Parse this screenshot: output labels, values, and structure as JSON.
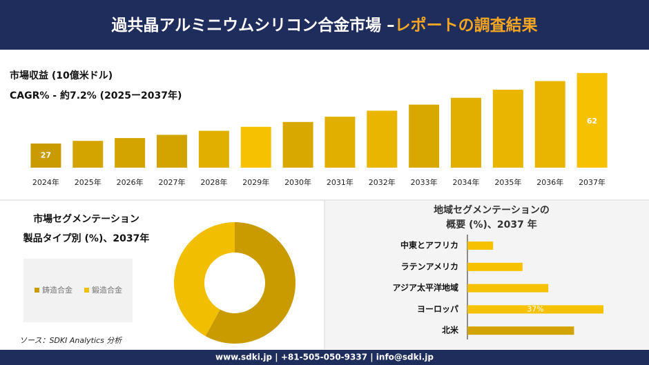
{
  "header": {
    "title": "過共晶アルミニウムシリコン合金市場 –",
    "title_highlight": "レポートの調査結果"
  },
  "chart_data": [
    {
      "type": "bar",
      "title": "市場収益 (10億米ドル)",
      "subtitle": "CAGR% - 約7.2% (2025ー2037年)",
      "categories": [
        "2024年",
        "2025年",
        "2026年",
        "2027年",
        "2028年",
        "2029年",
        "2030年",
        "2031年",
        "2032年",
        "2033年",
        "2034年",
        "2035年",
        "2036年",
        "2037年"
      ],
      "values": [
        27,
        28.3,
        29.7,
        31.3,
        33.3,
        35.3,
        37.7,
        40.3,
        43.3,
        46.3,
        49.7,
        53.7,
        58,
        62
      ],
      "value_labels": [
        "27",
        null,
        null,
        null,
        null,
        null,
        null,
        null,
        null,
        null,
        null,
        null,
        null,
        "62"
      ],
      "colors": [
        "#c99b00",
        "#d3a400",
        "#d3a400",
        "#d3a400",
        "#e0af00",
        "#f5c100",
        "#d9a800",
        "#e0af00",
        "#e8b500",
        "#d9a800",
        "#e0af00",
        "#e8b500",
        "#e8b500",
        "#f5c100"
      ],
      "ylim": [
        15,
        64
      ]
    },
    {
      "type": "pie",
      "title": "市場セグメンテーション",
      "subtitle": "製品タイプ別 (%)、2037年",
      "categories": [
        "鋳造合金",
        "鍛造合金"
      ],
      "values": [
        58,
        42
      ],
      "colors": [
        "#c99b00",
        "#f2be00"
      ],
      "source": "ソース：SDKI Analytics 分析"
    },
    {
      "type": "barh",
      "title": "地域セグメンテーションの",
      "subtitle": "概要 (%)、2037 年",
      "categories": [
        "中東とアフリカ",
        "ラテンアメリカ",
        "アジア太平洋地域",
        "ヨーロッパ",
        "北米"
      ],
      "values": [
        7,
        15,
        22,
        37,
        29
      ],
      "value_labels": [
        null,
        null,
        null,
        "37%",
        null
      ],
      "colors": [
        "#f5c100",
        "#f5c100",
        "#f5c100",
        "#f5c100",
        "#d3a400"
      ],
      "xlim": [
        0,
        40
      ]
    }
  ],
  "footer": {
    "contact": "www.sdki.jp | +81-505-050-9337 | info@sdki.jp"
  }
}
